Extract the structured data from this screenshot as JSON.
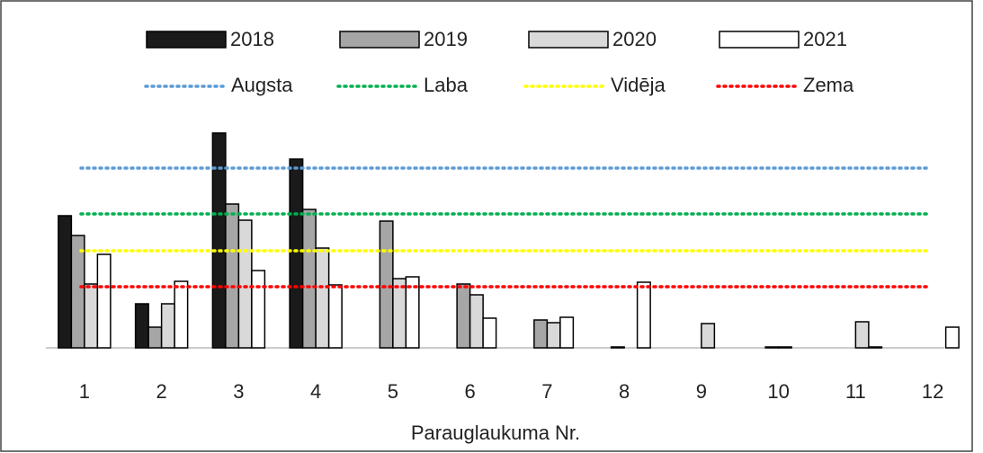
{
  "chart_data": {
    "type": "bar",
    "x_label": "Parauglaukuma Nr.",
    "categories": [
      "1",
      "2",
      "3",
      "4",
      "5",
      "6",
      "7",
      "8",
      "9",
      "10",
      "11",
      "12"
    ],
    "series": [
      {
        "name": "2018",
        "color": "#1a1a1a",
        "values": [
          147,
          49,
          239,
          210,
          0,
          0,
          0,
          0,
          0,
          0,
          0,
          0
        ]
      },
      {
        "name": "2019",
        "color": "#a6a6a6",
        "values": [
          125,
          23,
          160,
          154,
          141,
          71,
          31,
          1,
          0,
          1,
          0,
          0
        ]
      },
      {
        "name": "2020",
        "color": "#d9d9d9",
        "values": [
          71,
          49,
          142,
          111,
          77,
          59,
          28,
          0,
          27,
          1,
          29,
          0
        ]
      },
      {
        "name": "2021",
        "color": "#ffffff",
        "values": [
          104,
          74,
          86,
          70,
          79,
          33,
          34,
          73,
          0,
          0,
          1,
          23
        ]
      }
    ],
    "reference_lines": [
      {
        "name": "Augsta",
        "color": "#5b9bd5",
        "value": 200
      },
      {
        "name": "Laba",
        "color": "#00b050",
        "value": 149
      },
      {
        "name": "Vidēja",
        "color": "#ffff00",
        "value": 108
      },
      {
        "name": "Zema",
        "color": "#ff0000",
        "value": 68
      }
    ],
    "ylim": [
      0,
      250
    ]
  }
}
